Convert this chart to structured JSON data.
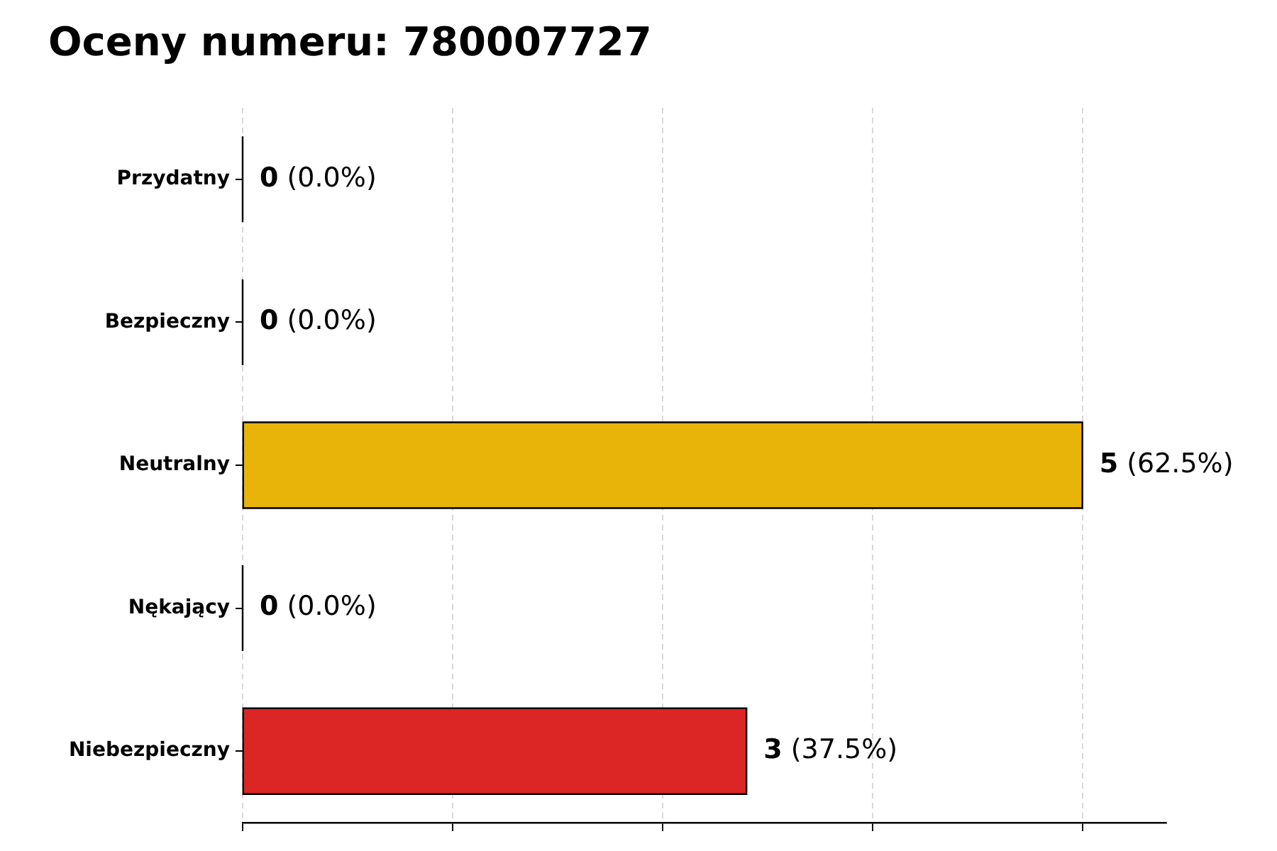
{
  "chart_data": {
    "type": "bar",
    "orientation": "horizontal",
    "title": "Oceny numeru: 780007727",
    "categories": [
      "Przydatny",
      "Bezpieczny",
      "Neutralny",
      "Nękający",
      "Niebezpieczny"
    ],
    "values": [
      0,
      0,
      5,
      0,
      3
    ],
    "colors": [
      "#000000",
      "#000000",
      "#e8b40a",
      "#000000",
      "#dc2626"
    ],
    "value_labels": [
      "0 (0.0%)",
      "0 (0.0%)",
      "5 (62.5%)",
      "0 (0.0%)",
      "3 (37.5%)"
    ],
    "xlim": [
      0,
      5.5
    ],
    "xticks": [
      {
        "value": 0,
        "label": null
      },
      {
        "value": 1.25,
        "label": null
      },
      {
        "value": 2.5,
        "label": null
      },
      {
        "value": 3.75,
        "label": null
      },
      {
        "value": 5,
        "label": null
      }
    ],
    "grid": "x",
    "tick_labels": "y"
  }
}
